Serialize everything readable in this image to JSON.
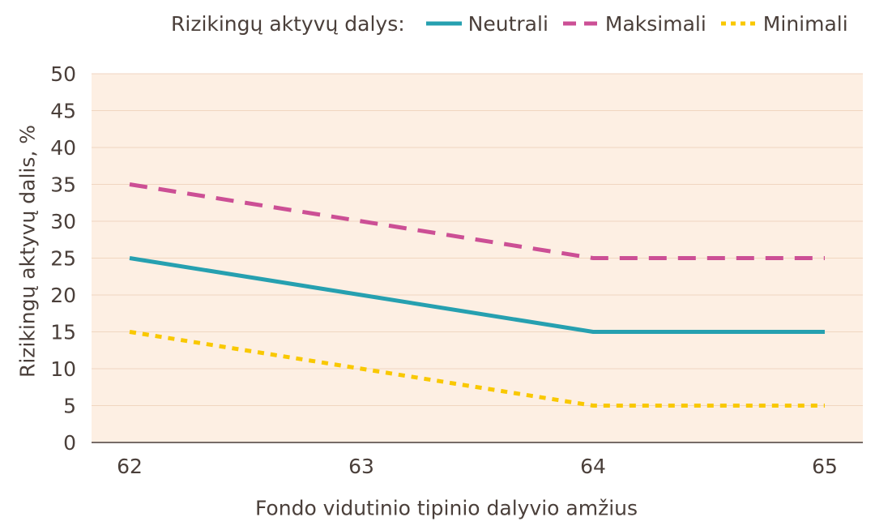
{
  "chart_data": {
    "type": "line",
    "legend_title": "Rizikingų aktyvų dalys:",
    "xlabel": "Fondo vidutinio tipinio dalyvio amžius",
    "ylabel": "Rizikingų aktyvų dalis, %",
    "x": [
      62,
      63,
      64,
      65
    ],
    "ylim": [
      0,
      50
    ],
    "yticks": [
      0,
      5,
      10,
      15,
      20,
      25,
      30,
      35,
      40,
      45,
      50
    ],
    "grid": true,
    "legend_position": "top",
    "plot_background": "#fdefe3",
    "series": [
      {
        "name": "Neutrali",
        "values": [
          25,
          20,
          15,
          15
        ],
        "color": "#26a0b0",
        "style": "solid"
      },
      {
        "name": "Maksimali",
        "values": [
          35,
          30,
          25,
          25
        ],
        "color": "#cc4f95",
        "style": "dashed"
      },
      {
        "name": "Minimali",
        "values": [
          15,
          10,
          5,
          5
        ],
        "color": "#f9c800",
        "style": "dotted"
      }
    ]
  }
}
